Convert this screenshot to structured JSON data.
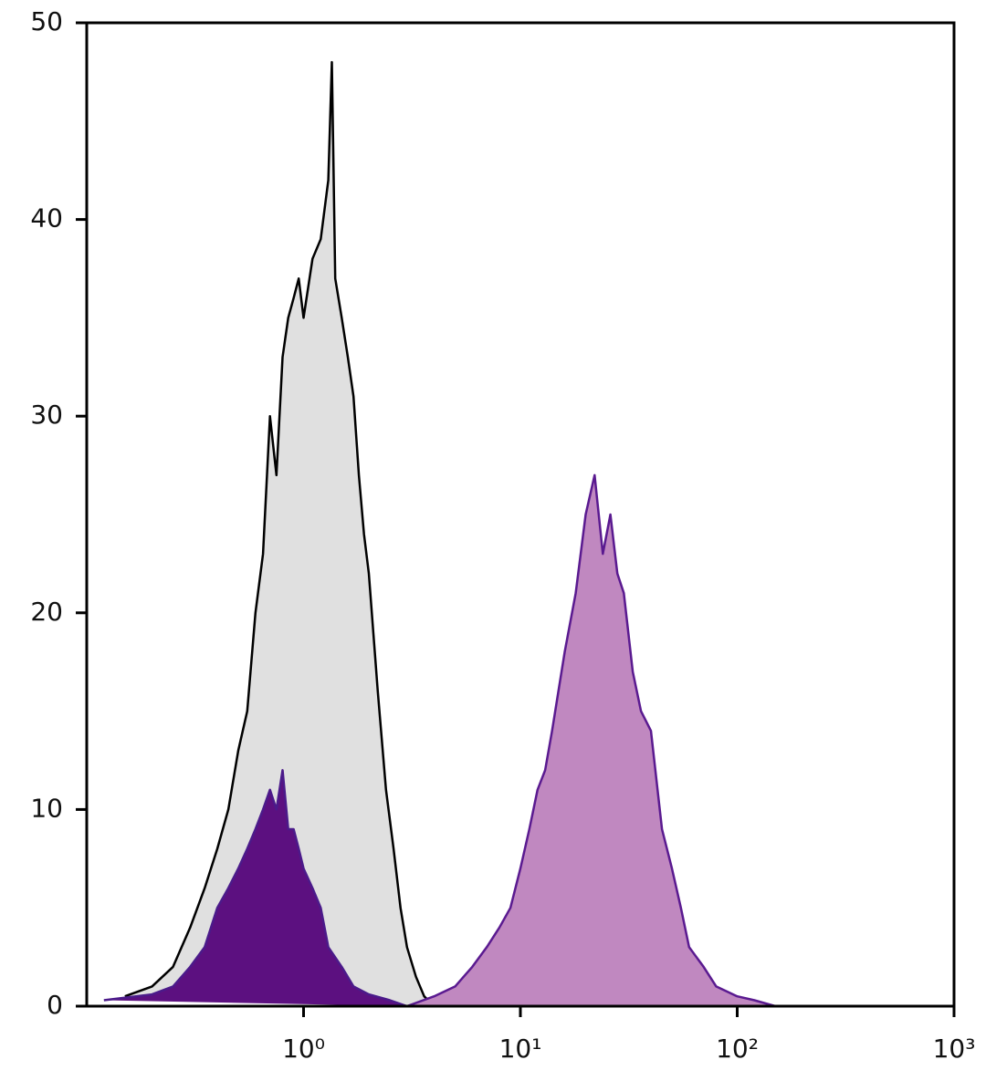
{
  "chart_data": {
    "type": "area",
    "xscale": "log",
    "xlim": [
      0.1,
      1000
    ],
    "ylim": [
      0,
      50
    ],
    "xticks": [
      {
        "value": 1,
        "label": "10⁰"
      },
      {
        "value": 10,
        "label": "10¹"
      },
      {
        "value": 100,
        "label": "10²"
      },
      {
        "value": 1000,
        "label": "10³"
      }
    ],
    "yticks": [
      0,
      10,
      20,
      30,
      40,
      50
    ],
    "series": [
      {
        "color": "#000000",
        "fill": "#e0e0e0",
        "x": [
          0.15,
          0.2,
          0.25,
          0.3,
          0.35,
          0.4,
          0.45,
          0.5,
          0.55,
          0.6,
          0.65,
          0.7,
          0.75,
          0.8,
          0.85,
          0.9,
          0.95,
          1.0,
          1.1,
          1.2,
          1.3,
          1.35,
          1.4,
          1.5,
          1.6,
          1.7,
          1.8,
          1.9,
          2.0,
          2.2,
          2.4,
          2.6,
          2.8,
          3.0,
          3.3,
          3.6,
          4.0
        ],
        "values": [
          0.5,
          1,
          2,
          4,
          6,
          8,
          10,
          13,
          15,
          20,
          23,
          30,
          27,
          33,
          35,
          36,
          37,
          35,
          38,
          39,
          42,
          48,
          37,
          35,
          33,
          31,
          27,
          24,
          22,
          16,
          11,
          8,
          5,
          3,
          1.5,
          0.5,
          0
        ]
      },
      {
        "color": "#4b1a8a",
        "fill": "#5c1080",
        "x": [
          0.12,
          0.2,
          0.25,
          0.3,
          0.35,
          0.4,
          0.45,
          0.5,
          0.55,
          0.6,
          0.65,
          0.7,
          0.75,
          0.8,
          0.85,
          0.9,
          0.95,
          1.0,
          1.1,
          1.2,
          1.3,
          1.5,
          1.7,
          2.0,
          2.5,
          3.0
        ],
        "values": [
          0.3,
          0.6,
          1,
          2,
          3,
          5,
          6,
          7,
          8,
          9,
          10,
          11,
          10,
          12,
          9,
          9,
          8,
          7,
          6,
          5,
          3,
          2,
          1,
          0.6,
          0.3,
          0
        ]
      },
      {
        "color": "#5a1a90",
        "fill": "#c088c0",
        "x": [
          3,
          4,
          5,
          6,
          7,
          8,
          9,
          10,
          11,
          12,
          13,
          14,
          16,
          18,
          20,
          22,
          24,
          26,
          28,
          30,
          33,
          36,
          40,
          45,
          50,
          55,
          60,
          70,
          80,
          100,
          120,
          150,
          200
        ],
        "values": [
          0,
          0.5,
          1,
          2,
          3,
          4,
          5,
          7,
          9,
          11,
          12,
          14,
          18,
          21,
          25,
          27,
          23,
          25,
          22,
          21,
          17,
          15,
          14,
          9,
          7,
          5,
          3,
          2,
          1,
          0.5,
          0.3,
          0,
          0
        ]
      }
    ]
  }
}
